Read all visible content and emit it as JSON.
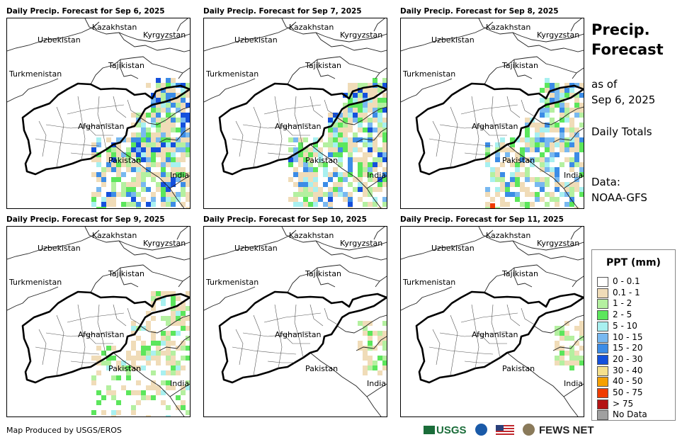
{
  "panels": [
    {
      "title": "Daily Precip. Forecast for Sep 6, 2025",
      "intensity": "heavy"
    },
    {
      "title": "Daily Precip. Forecast for Sep 7, 2025",
      "intensity": "heavy"
    },
    {
      "title": "Daily Precip. Forecast for Sep 8, 2025",
      "intensity": "moderate"
    },
    {
      "title": "Daily Precip. Forecast for Sep 9, 2025",
      "intensity": "light"
    },
    {
      "title": "Daily Precip. Forecast for Sep 10, 2025",
      "intensity": "minimal"
    },
    {
      "title": "Daily Precip. Forecast for Sep 11, 2025",
      "intensity": "minimal"
    }
  ],
  "map_labels": {
    "kazakhstan": "Kazakhstan",
    "kyrgyzstan": "Kyrgyzstan",
    "uzbekistan": "Uzbekistan",
    "tajikistan": "Tajikistan",
    "turkmenistan": "Turkmenistan",
    "afghanistan": "Afghanistan",
    "pakistan": "Pakistan",
    "india": "India"
  },
  "side": {
    "title_line1": "Precip.",
    "title_line2": "Forecast",
    "asof_line1": "as of",
    "asof_line2": "Sep 6, 2025",
    "totals": "Daily Totals",
    "data_line1": "Data:",
    "data_line2": "NOAA-GFS"
  },
  "legend": {
    "title": "PPT (mm)",
    "items": [
      {
        "label": "0 - 0.1",
        "color": "#ffffff"
      },
      {
        "label": "0.1 - 1",
        "color": "#f0dcb8"
      },
      {
        "label": "1 - 2",
        "color": "#b4f0a0"
      },
      {
        "label": "2 - 5",
        "color": "#5ce65c"
      },
      {
        "label": "5 - 10",
        "color": "#a8f0f0"
      },
      {
        "label": "10 - 15",
        "color": "#78b8f0"
      },
      {
        "label": "15 - 20",
        "color": "#3c8ce6"
      },
      {
        "label": "20 - 30",
        "color": "#1450dc"
      },
      {
        "label": "30 - 40",
        "color": "#f5e08c"
      },
      {
        "label": "40 - 50",
        "color": "#f5a000"
      },
      {
        "label": "50 - 75",
        "color": "#f03c00"
      },
      {
        "label": "> 75",
        "color": "#b41414"
      },
      {
        "label": "No Data",
        "color": "#a0a0a0"
      }
    ]
  },
  "credit": "Map Produced by USGS/EROS",
  "logos": {
    "usgs": "USGS",
    "fews": "FEWS NET"
  }
}
